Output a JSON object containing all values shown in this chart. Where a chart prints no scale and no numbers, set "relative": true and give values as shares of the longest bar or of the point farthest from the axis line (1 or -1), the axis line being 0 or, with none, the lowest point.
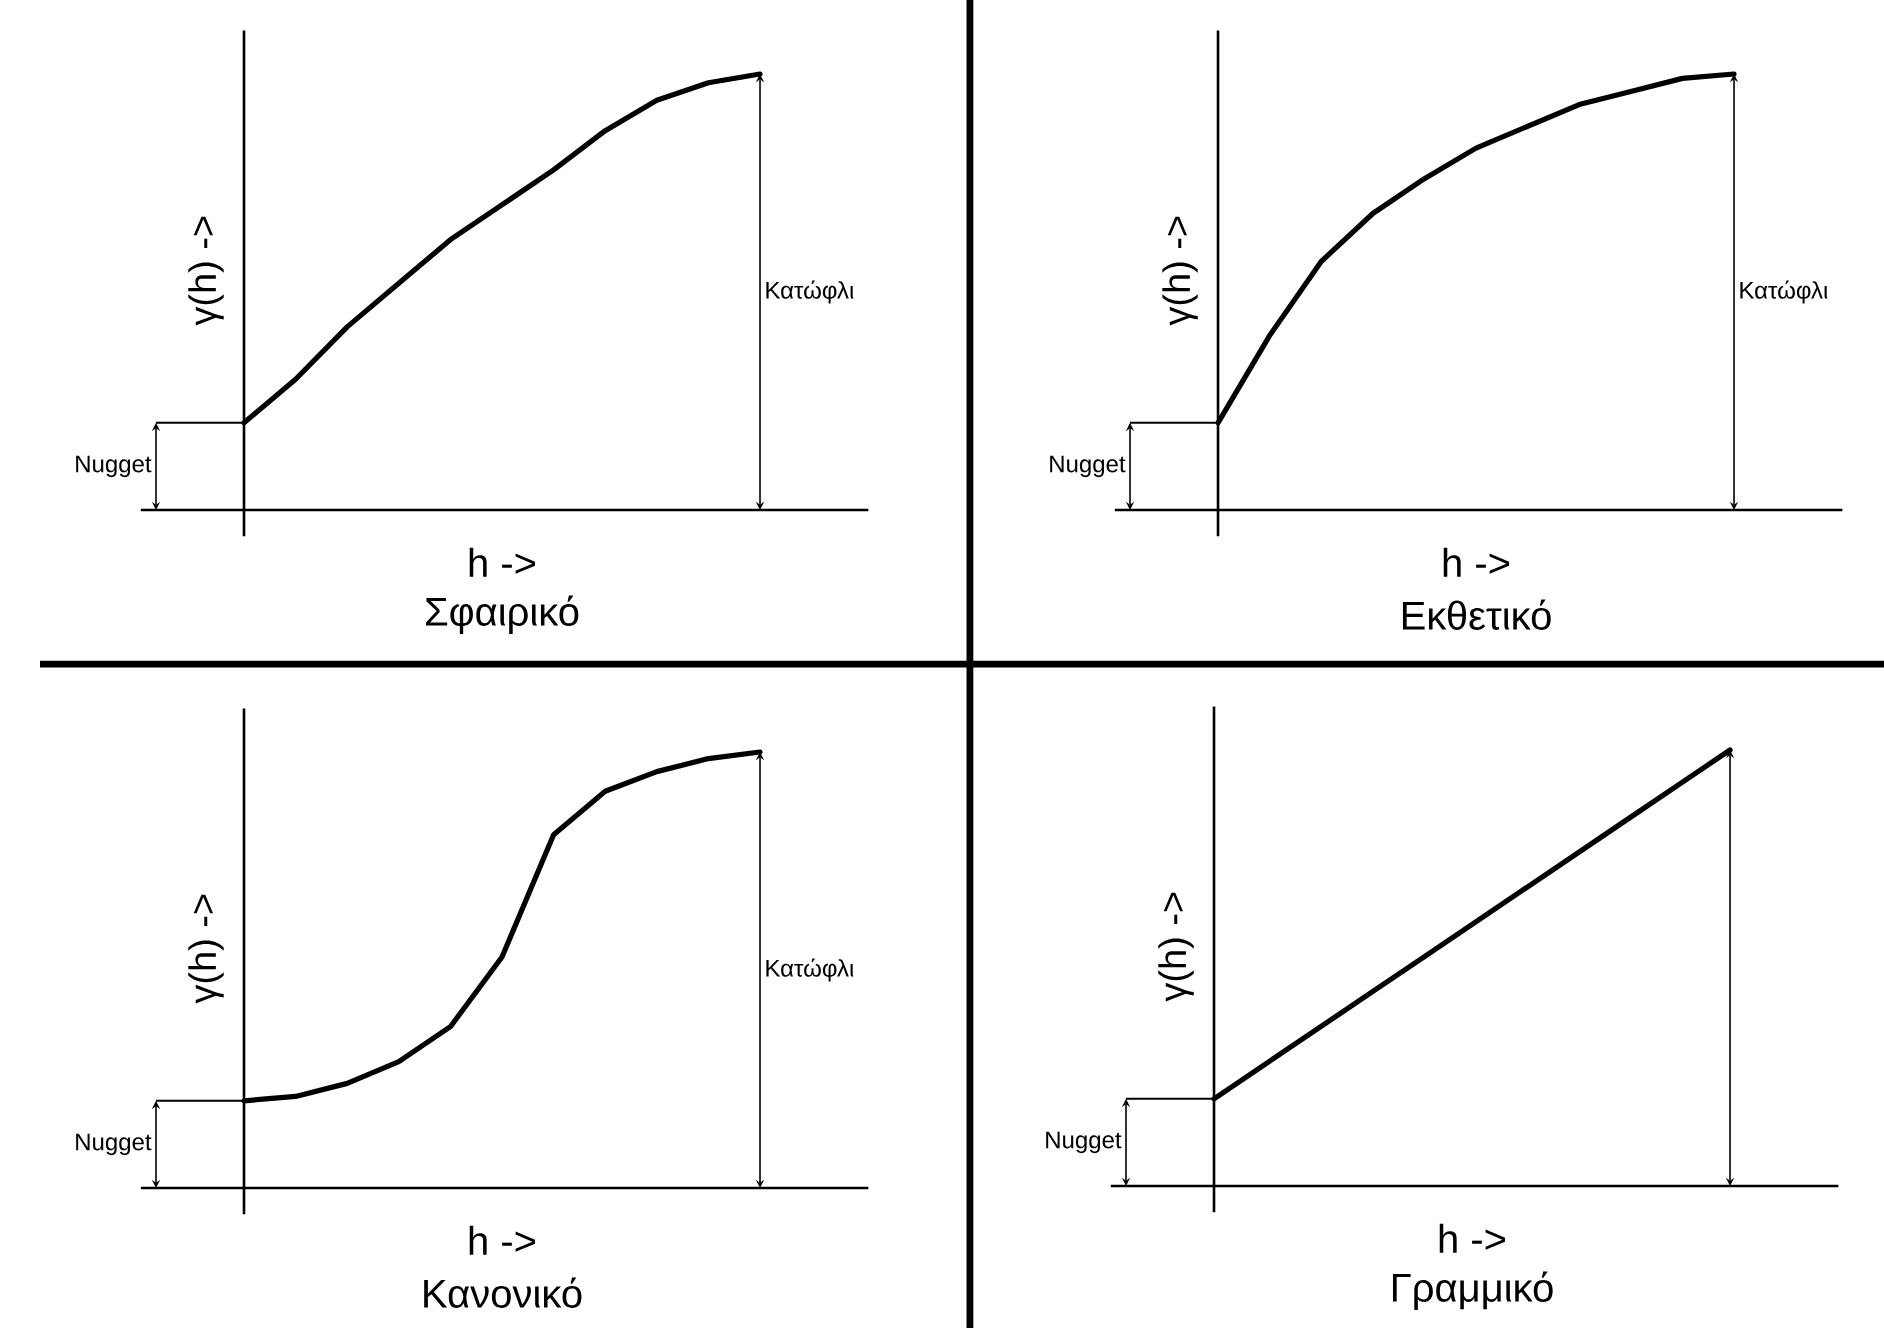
{
  "chart_data": [
    {
      "type": "line",
      "title": "Σφαιρικό",
      "xlabel": "h ->",
      "ylabel": "γ(h) ->",
      "relative": true,
      "categories": [
        null,
        null,
        null,
        null,
        null,
        null,
        null,
        null,
        null,
        null,
        null
      ],
      "series": [
        {
          "color": "#000000",
          "values": [
            0.2,
            0.3,
            0.42,
            0.52,
            0.62,
            0.7,
            0.78,
            0.87,
            0.94,
            0.98,
            1
          ]
        }
      ],
      "annotations": [
        "Nugget",
        "Κατώφλι"
      ]
    },
    {
      "type": "line",
      "title": "Εκθετικό",
      "xlabel": "h ->",
      "ylabel": "γ(h) ->",
      "relative": true,
      "categories": [
        null,
        null,
        null,
        null,
        null,
        null,
        null,
        null,
        null,
        null,
        null
      ],
      "series": [
        {
          "color": "#000000",
          "values": [
            0.2,
            0.4,
            0.57,
            0.68,
            0.76,
            0.83,
            0.88,
            0.93,
            0.96,
            0.99,
            1
          ]
        }
      ],
      "annotations": [
        "Nugget",
        "Κατώφλι"
      ]
    },
    {
      "type": "line",
      "title": "Κανονικό",
      "xlabel": "h ->",
      "ylabel": "γ(h) ->",
      "relative": true,
      "categories": [
        null,
        null,
        null,
        null,
        null,
        null,
        null,
        null,
        null,
        null,
        null
      ],
      "series": [
        {
          "color": "#000000",
          "values": [
            0.2,
            0.21,
            0.24,
            0.29,
            0.37,
            0.53,
            0.81,
            0.91,
            0.955,
            0.985,
            1
          ]
        }
      ],
      "annotations": [
        "Nugget",
        "Κατώφλι"
      ]
    },
    {
      "type": "line",
      "title": "Γραμμικό",
      "xlabel": "h ->",
      "ylabel": "γ(h) ->",
      "relative": true,
      "categories": [
        null,
        null,
        null,
        null,
        null,
        null,
        null,
        null,
        null,
        null,
        null
      ],
      "series": [
        {
          "color": "#000000",
          "values": [
            0.2,
            0.28,
            0.36,
            0.44,
            0.52,
            0.6,
            0.68,
            0.76,
            0.84,
            0.92,
            1
          ]
        }
      ],
      "annotations": [
        "Nugget"
      ]
    }
  ]
}
